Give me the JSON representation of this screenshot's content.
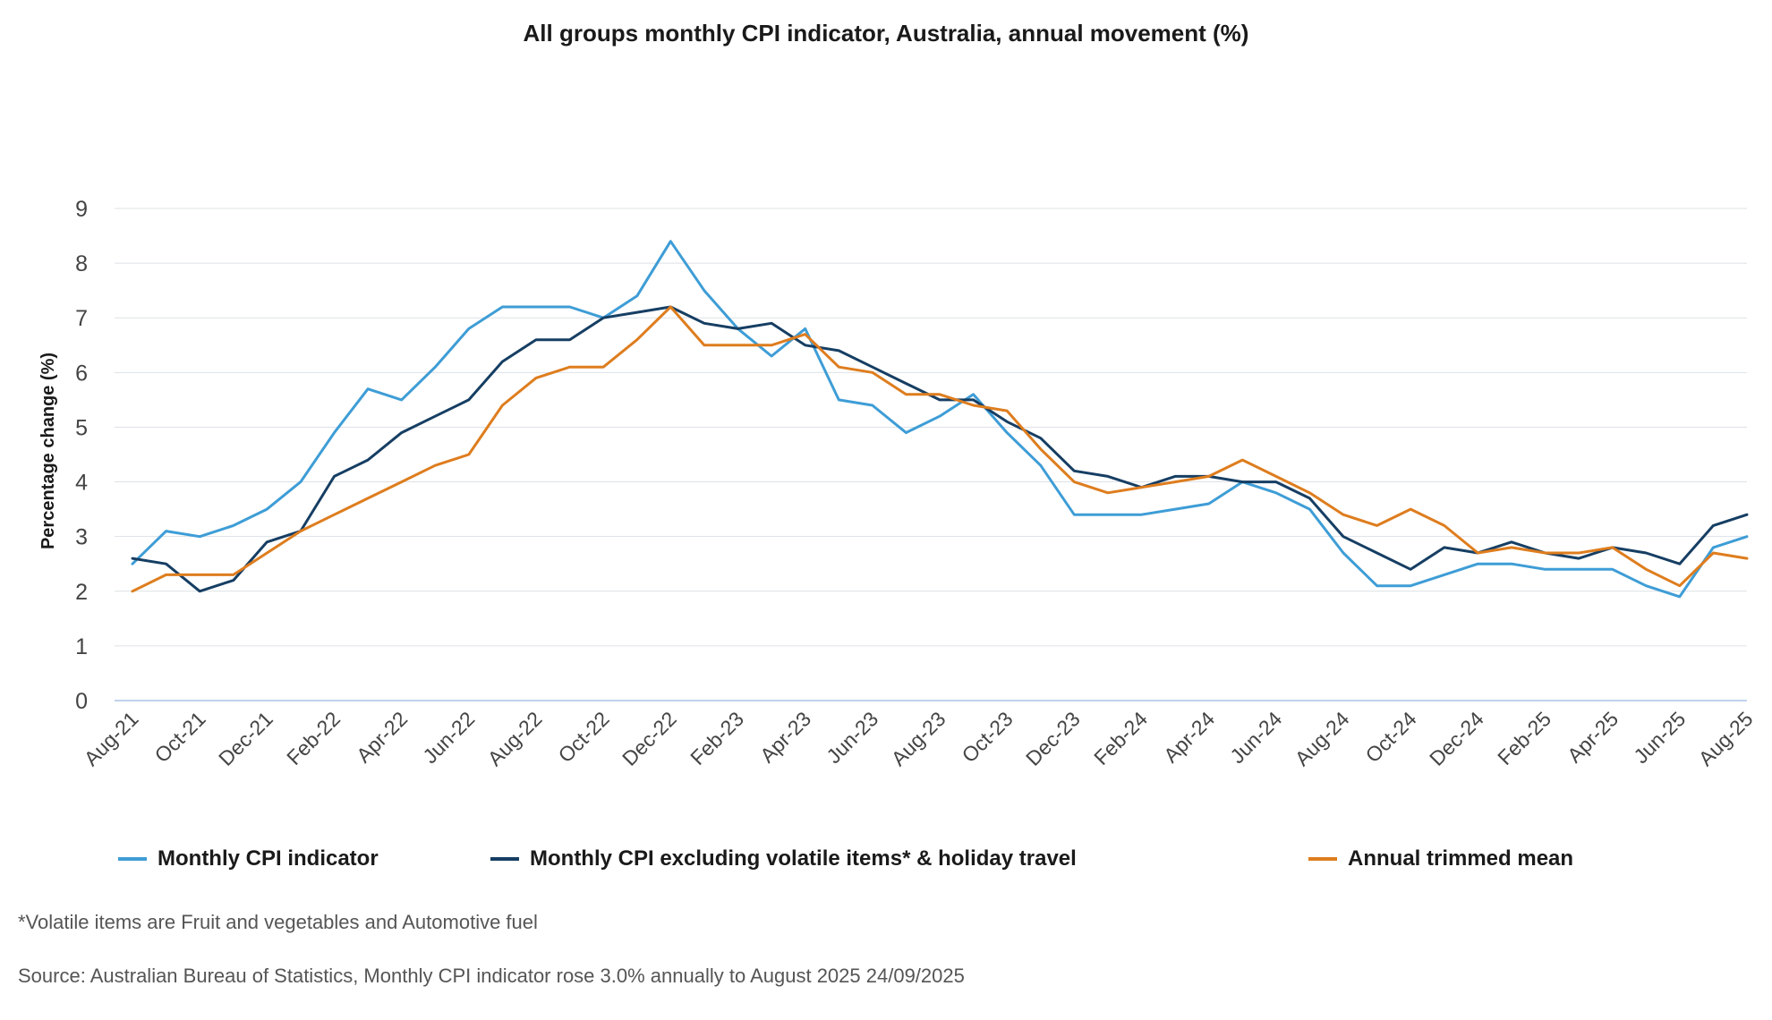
{
  "title": "All groups monthly CPI indicator, Australia, annual movement (%)",
  "chart_data": {
    "type": "line",
    "title": "All groups monthly CPI indicator, Australia, annual movement (%)",
    "xlabel": "",
    "ylabel": "Percentage change (%)",
    "ylim": [
      0,
      9
    ],
    "yticks": [
      0,
      1,
      2,
      3,
      4,
      5,
      6,
      7,
      8,
      9
    ],
    "grid": true,
    "legend_position": "bottom",
    "x": [
      "Aug-21",
      "Sep-21",
      "Oct-21",
      "Nov-21",
      "Dec-21",
      "Jan-22",
      "Feb-22",
      "Mar-22",
      "Apr-22",
      "May-22",
      "Jun-22",
      "Jul-22",
      "Aug-22",
      "Sep-22",
      "Oct-22",
      "Nov-22",
      "Dec-22",
      "Jan-23",
      "Feb-23",
      "Mar-23",
      "Apr-23",
      "May-23",
      "Jun-23",
      "Jul-23",
      "Aug-23",
      "Sep-23",
      "Oct-23",
      "Nov-23",
      "Dec-23",
      "Jan-24",
      "Feb-24",
      "Mar-24",
      "Apr-24",
      "May-24",
      "Jun-24",
      "Jul-24",
      "Aug-24",
      "Sep-24",
      "Oct-24",
      "Nov-24",
      "Dec-24",
      "Jan-25",
      "Feb-25",
      "Mar-25",
      "Apr-25",
      "May-25",
      "Jun-25",
      "Jul-25",
      "Aug-25"
    ],
    "x_tick_labels": [
      "Aug-21",
      "Oct-21",
      "Dec-21",
      "Feb-22",
      "Apr-22",
      "Jun-22",
      "Aug-22",
      "Oct-22",
      "Dec-22",
      "Feb-23",
      "Apr-23",
      "Jun-23",
      "Aug-23",
      "Oct-23",
      "Dec-23",
      "Feb-24",
      "Apr-24",
      "Jun-24",
      "Aug-24",
      "Oct-24",
      "Dec-24",
      "Feb-25",
      "Apr-25",
      "Jun-25",
      "Aug-25"
    ],
    "series": [
      {
        "name": "Monthly CPI indicator",
        "color": "#3e9dd6",
        "values": [
          2.5,
          3.1,
          3.0,
          3.2,
          3.5,
          4.0,
          4.9,
          5.7,
          5.5,
          6.1,
          6.8,
          7.2,
          7.2,
          7.2,
          7.0,
          7.4,
          8.4,
          7.5,
          6.8,
          6.3,
          6.8,
          5.5,
          5.4,
          4.9,
          5.2,
          5.6,
          4.9,
          4.3,
          3.4,
          3.4,
          3.4,
          3.5,
          3.6,
          4.0,
          3.8,
          3.5,
          2.7,
          2.1,
          2.1,
          2.3,
          2.5,
          2.5,
          2.4,
          2.4,
          2.4,
          2.1,
          1.9,
          2.8,
          3.0
        ]
      },
      {
        "name": "Monthly CPI excluding volatile items* & holiday travel",
        "color": "#163e63",
        "values": [
          2.6,
          2.5,
          2.0,
          2.2,
          2.9,
          3.1,
          4.1,
          4.4,
          4.9,
          5.2,
          5.5,
          6.2,
          6.6,
          6.6,
          7.0,
          7.1,
          7.2,
          6.9,
          6.8,
          6.9,
          6.5,
          6.4,
          6.1,
          5.8,
          5.5,
          5.5,
          5.1,
          4.8,
          4.2,
          4.1,
          3.9,
          4.1,
          4.1,
          4.0,
          4.0,
          3.7,
          3.0,
          2.7,
          2.4,
          2.8,
          2.7,
          2.9,
          2.7,
          2.6,
          2.8,
          2.7,
          2.5,
          3.2,
          3.4
        ]
      },
      {
        "name": "Annual trimmed mean",
        "color": "#de7d1e",
        "values": [
          2.0,
          2.3,
          2.3,
          2.3,
          2.7,
          3.1,
          3.4,
          3.7,
          4.0,
          4.3,
          4.5,
          5.4,
          5.9,
          6.1,
          6.1,
          6.6,
          7.2,
          6.5,
          6.5,
          6.5,
          6.7,
          6.1,
          6.0,
          5.6,
          5.6,
          5.4,
          5.3,
          4.6,
          4.0,
          3.8,
          3.9,
          4.0,
          4.1,
          4.4,
          4.1,
          3.8,
          3.4,
          3.2,
          3.5,
          3.2,
          2.7,
          2.8,
          2.7,
          2.7,
          2.8,
          2.4,
          2.1,
          2.7,
          2.6
        ]
      }
    ],
    "axis_color": "#a9c4e6",
    "grid_color": "#dde1e6"
  },
  "notes": {
    "footnote": "*Volatile items are Fruit and vegetables and Automotive fuel",
    "source": "Source: Australian Bureau of Statistics, Monthly CPI indicator rose 3.0% annually to August 2025 24/09/2025"
  }
}
